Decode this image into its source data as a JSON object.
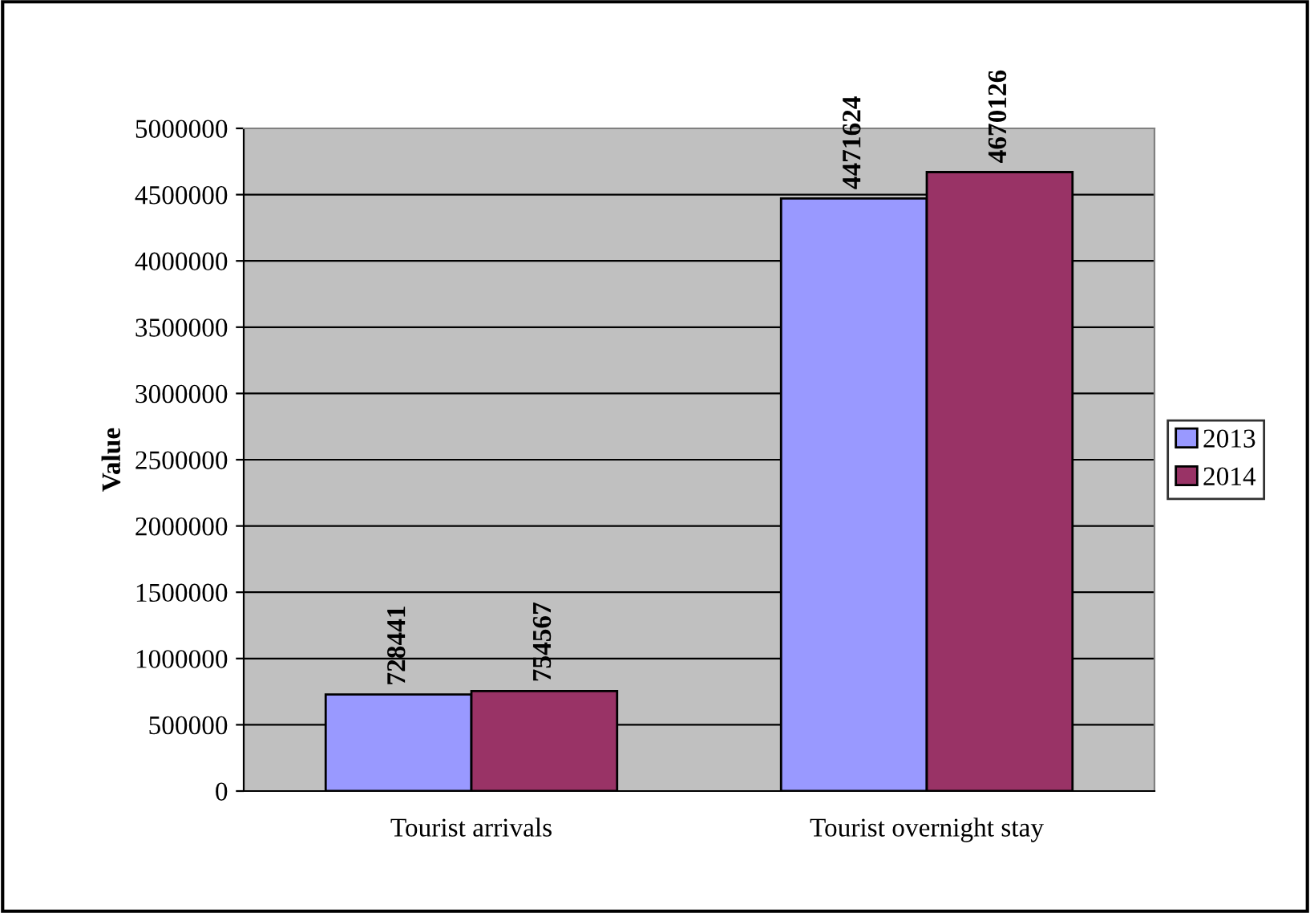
{
  "chart_data": {
    "type": "bar",
    "ylabel": "Value",
    "categories": [
      "Tourist arrivals",
      "Tourist overnight stay"
    ],
    "series": [
      {
        "name": "2013",
        "color": "#9999ff",
        "values": [
          728441,
          4471624
        ]
      },
      {
        "name": "2014",
        "color": "#993366",
        "values": [
          754567,
          4670126
        ]
      }
    ],
    "ylim": [
      0,
      5000000
    ],
    "yticks": [
      0,
      500000,
      1000000,
      1500000,
      2000000,
      2500000,
      3000000,
      3500000,
      4000000,
      4500000,
      5000000
    ],
    "grid": "y",
    "legend": "right",
    "data_labels": true
  }
}
